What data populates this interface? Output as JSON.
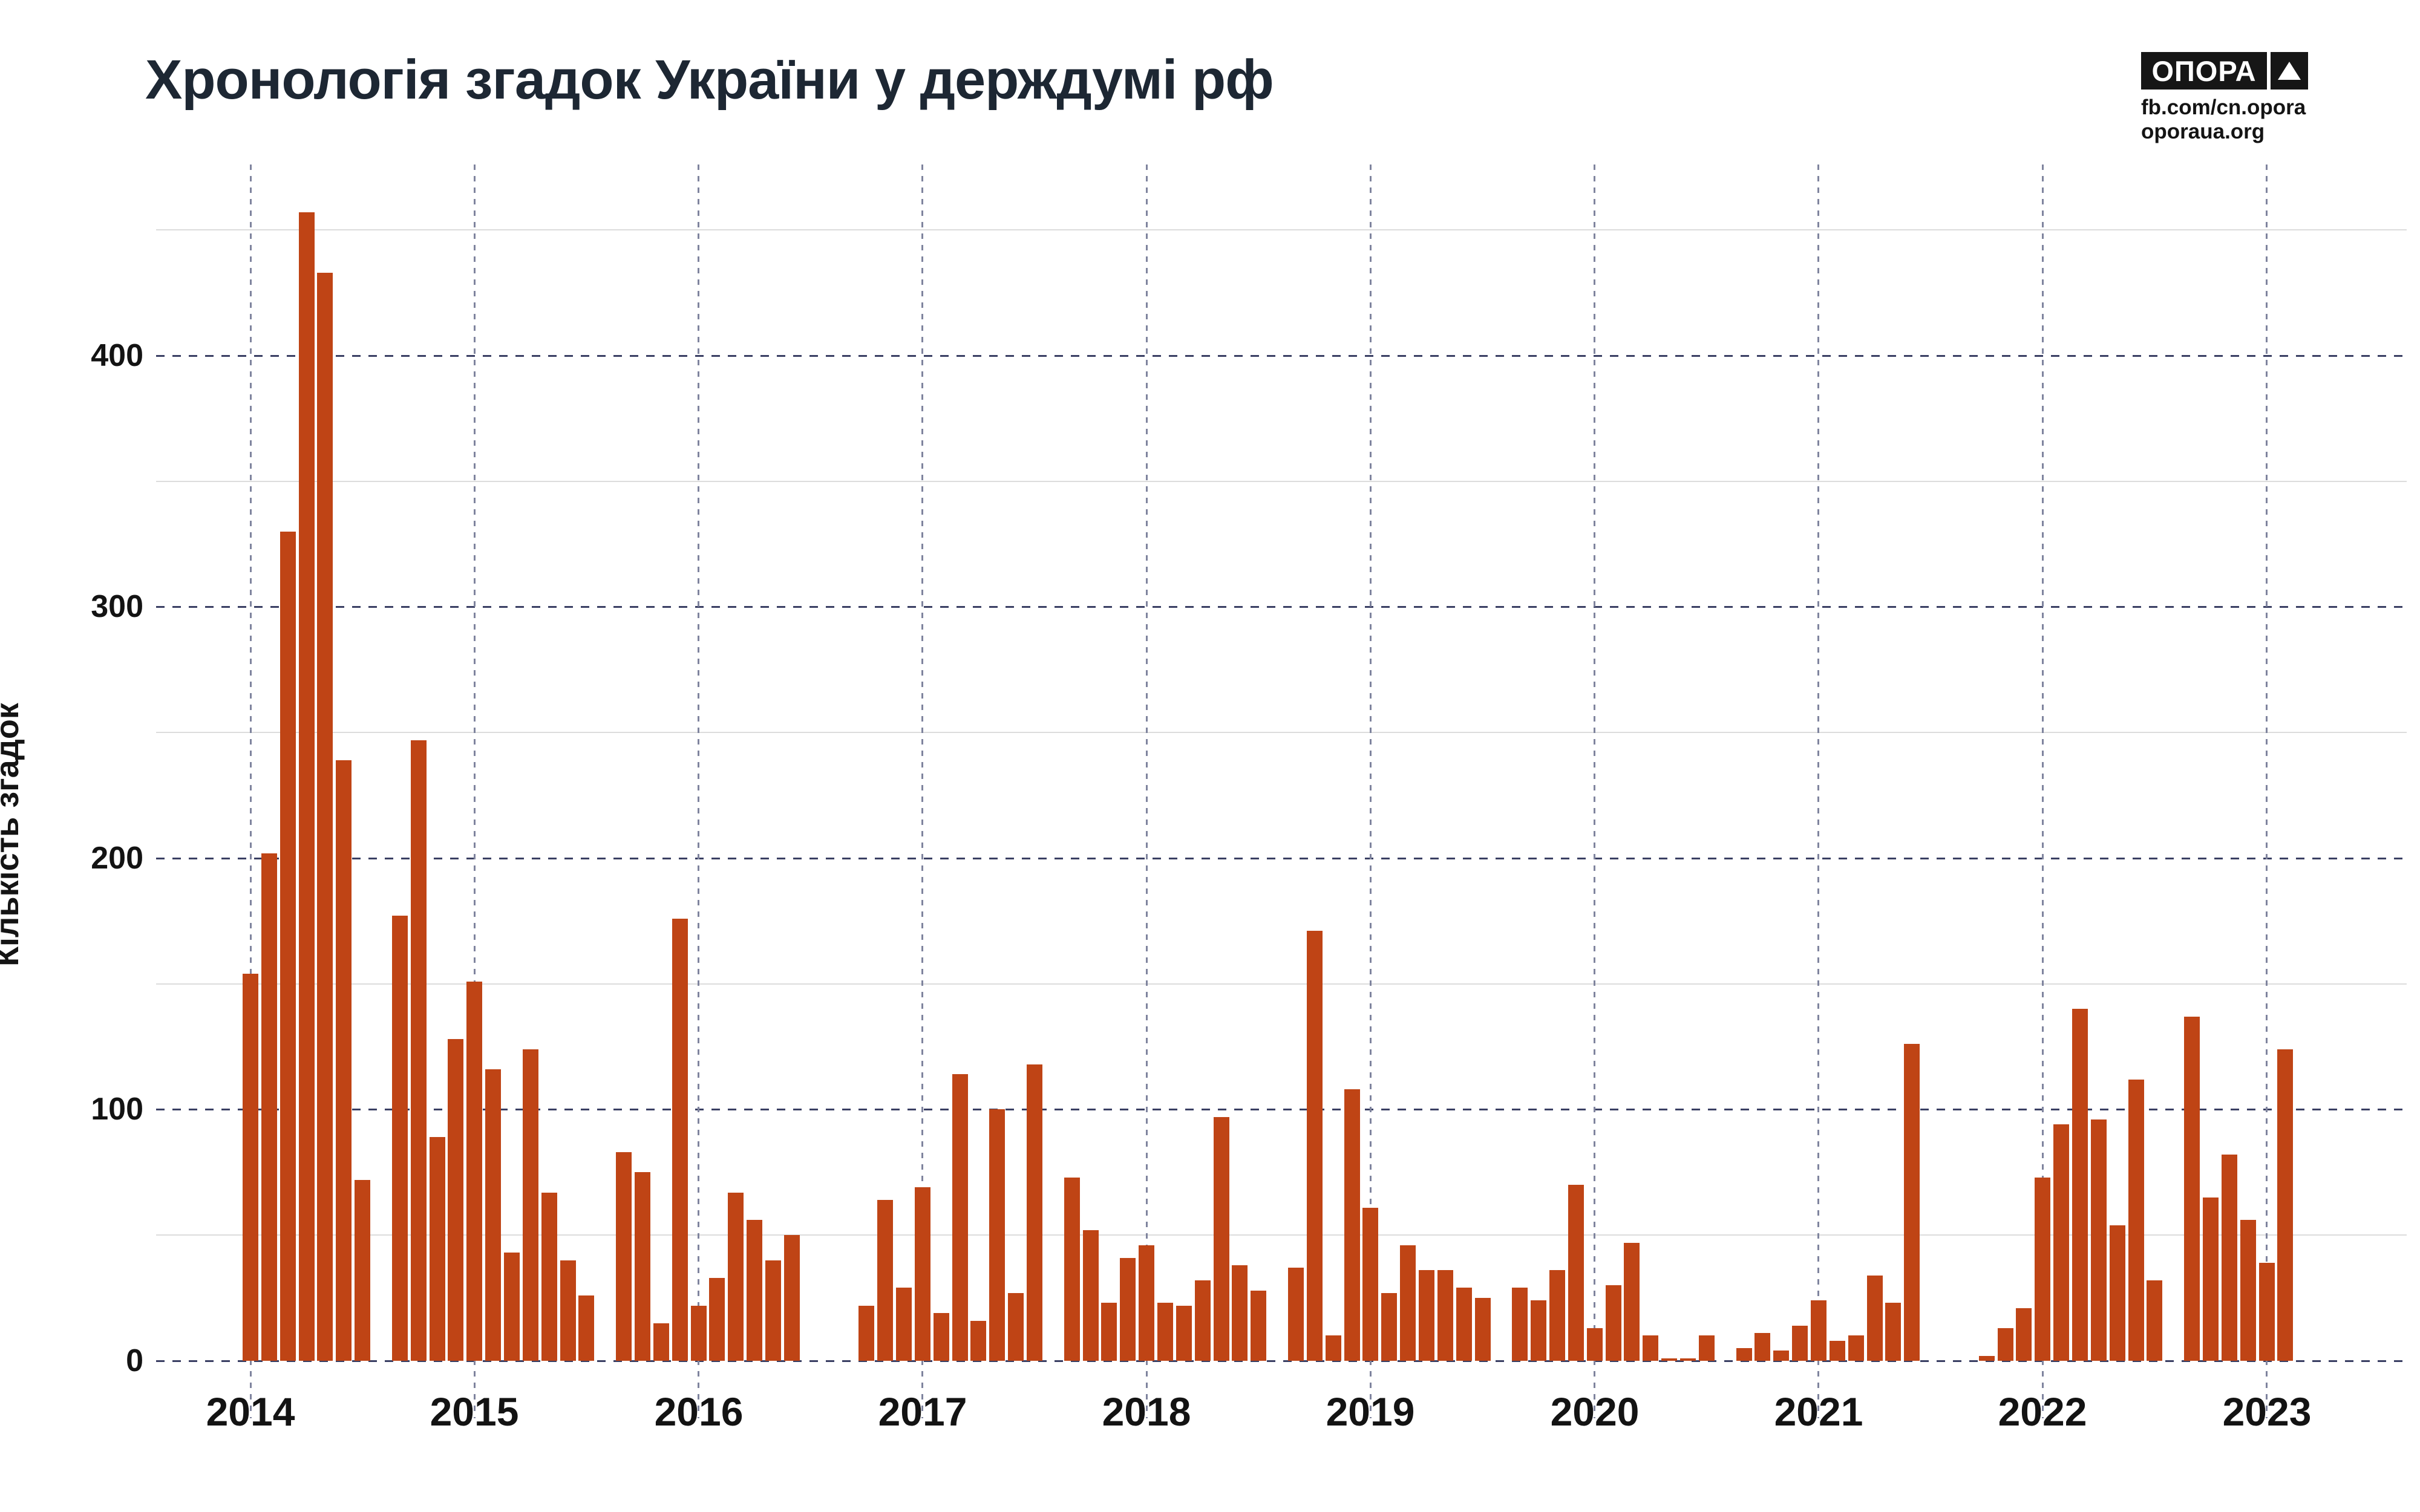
{
  "title": "Хронологія згадок України у держдумі рф",
  "logo": {
    "brand": "ОПОРА",
    "triangle_icon": "triangle-up",
    "fb": "fb.com/cn.opora",
    "site": "oporaua.org"
  },
  "y_axis": {
    "label": "Кількість згадок",
    "ticks": [
      0,
      100,
      200,
      300,
      400
    ]
  },
  "colors": {
    "bar": "#bf4415",
    "major_gridline": "#3a3f63",
    "minor_gridline": "#dcdcdc",
    "year_line": "#7f849e",
    "title_text": "#1d2733",
    "label_text": "#131313"
  },
  "chart_data": {
    "type": "bar",
    "title": "Хронологія згадок України у держдумі рф",
    "xlabel": "",
    "ylabel": "Кількість згадок",
    "ylim": [
      0,
      460
    ],
    "x_unit": "month",
    "x_start": "2014-01",
    "x_end": "2023-02",
    "gridlines": {
      "horizontal_every": 50,
      "major_every": 100,
      "vertical": "each January"
    },
    "years": [
      {
        "year": "2014",
        "values": [
          154,
          202,
          330,
          457,
          433,
          239,
          72,
          0,
          177,
          247,
          89,
          128
        ]
      },
      {
        "year": "2015",
        "values": [
          151,
          116,
          43,
          124,
          67,
          40,
          26,
          0,
          83,
          75,
          15,
          176
        ]
      },
      {
        "year": "2016",
        "values": [
          22,
          33,
          67,
          56,
          40,
          50,
          0,
          0,
          0,
          22,
          64,
          29
        ]
      },
      {
        "year": "2017",
        "values": [
          69,
          19,
          114,
          16,
          100,
          27,
          118,
          0,
          73,
          52,
          23,
          41
        ]
      },
      {
        "year": "2018",
        "values": [
          46,
          23,
          22,
          32,
          97,
          38,
          28,
          0,
          37,
          171,
          10,
          108
        ]
      },
      {
        "year": "2019",
        "values": [
          61,
          27,
          46,
          36,
          36,
          29,
          25,
          0,
          29,
          24,
          36,
          70
        ]
      },
      {
        "year": "2020",
        "values": [
          13,
          30,
          47,
          10,
          1,
          1,
          10,
          0,
          5,
          11,
          4,
          14
        ]
      },
      {
        "year": "2021",
        "values": [
          24,
          8,
          10,
          34,
          23,
          126,
          0,
          0,
          0,
          2,
          13,
          21
        ]
      },
      {
        "year": "2022",
        "values": [
          73,
          94,
          140,
          96,
          54,
          112,
          32,
          0,
          137,
          65,
          82,
          56
        ]
      },
      {
        "year": "2023",
        "values": [
          39,
          124
        ]
      }
    ]
  }
}
